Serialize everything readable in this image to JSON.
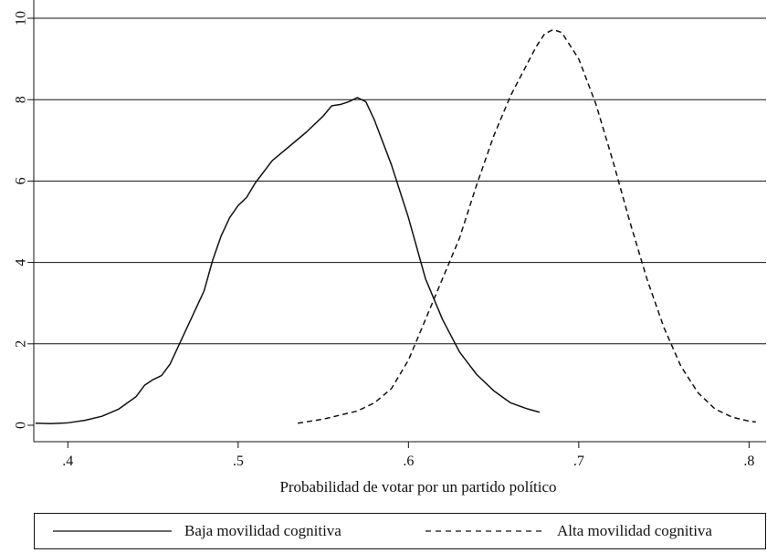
{
  "chart_data": {
    "type": "line",
    "title": "",
    "xlabel": "Probabilidad de votar por un partido político",
    "ylabel": "",
    "xlim": [
      0.38,
      0.81
    ],
    "ylim": [
      0,
      10
    ],
    "x_ticks": [
      {
        "value": 0.4,
        "label": ".4"
      },
      {
        "value": 0.5,
        "label": ".5"
      },
      {
        "value": 0.6,
        "label": ".6"
      },
      {
        "value": 0.7,
        "label": ".7"
      },
      {
        "value": 0.8,
        "label": ".8"
      }
    ],
    "y_ticks": [
      {
        "value": 0,
        "label": "0"
      },
      {
        "value": 2,
        "label": "2"
      },
      {
        "value": 4,
        "label": "4"
      },
      {
        "value": 6,
        "label": "6"
      },
      {
        "value": 8,
        "label": "8"
      },
      {
        "value": 10,
        "label": "10"
      }
    ],
    "grid": "horizontal",
    "legend_position": "bottom",
    "series": [
      {
        "name": "Baja movilidad cognitiva",
        "style": "solid",
        "x": [
          0.381,
          0.39,
          0.4,
          0.41,
          0.42,
          0.43,
          0.44,
          0.445,
          0.45,
          0.455,
          0.46,
          0.47,
          0.48,
          0.485,
          0.49,
          0.495,
          0.5,
          0.505,
          0.51,
          0.52,
          0.53,
          0.54,
          0.55,
          0.555,
          0.56,
          0.565,
          0.57,
          0.575,
          0.58,
          0.59,
          0.6,
          0.61,
          0.62,
          0.63,
          0.64,
          0.65,
          0.66,
          0.67,
          0.677
        ],
        "y": [
          0.05,
          0.04,
          0.06,
          0.12,
          0.22,
          0.4,
          0.7,
          0.98,
          1.12,
          1.22,
          1.5,
          2.4,
          3.3,
          4.05,
          4.65,
          5.1,
          5.4,
          5.6,
          5.95,
          6.5,
          6.85,
          7.2,
          7.6,
          7.85,
          7.88,
          7.95,
          8.05,
          7.95,
          7.5,
          6.4,
          5.1,
          3.6,
          2.6,
          1.8,
          1.25,
          0.85,
          0.55,
          0.4,
          0.32
        ]
      },
      {
        "name": "Alta movilidad cognitiva",
        "style": "dashed",
        "x": [
          0.535,
          0.55,
          0.57,
          0.58,
          0.59,
          0.6,
          0.61,
          0.62,
          0.63,
          0.64,
          0.65,
          0.66,
          0.67,
          0.675,
          0.68,
          0.685,
          0.69,
          0.7,
          0.71,
          0.72,
          0.73,
          0.74,
          0.75,
          0.76,
          0.77,
          0.78,
          0.79,
          0.8,
          0.804
        ],
        "y": [
          0.05,
          0.15,
          0.35,
          0.55,
          0.9,
          1.6,
          2.6,
          3.6,
          4.6,
          5.9,
          7.1,
          8.1,
          8.9,
          9.3,
          9.62,
          9.72,
          9.65,
          9.0,
          7.9,
          6.5,
          5.0,
          3.6,
          2.4,
          1.45,
          0.8,
          0.4,
          0.2,
          0.1,
          0.08
        ]
      }
    ]
  }
}
